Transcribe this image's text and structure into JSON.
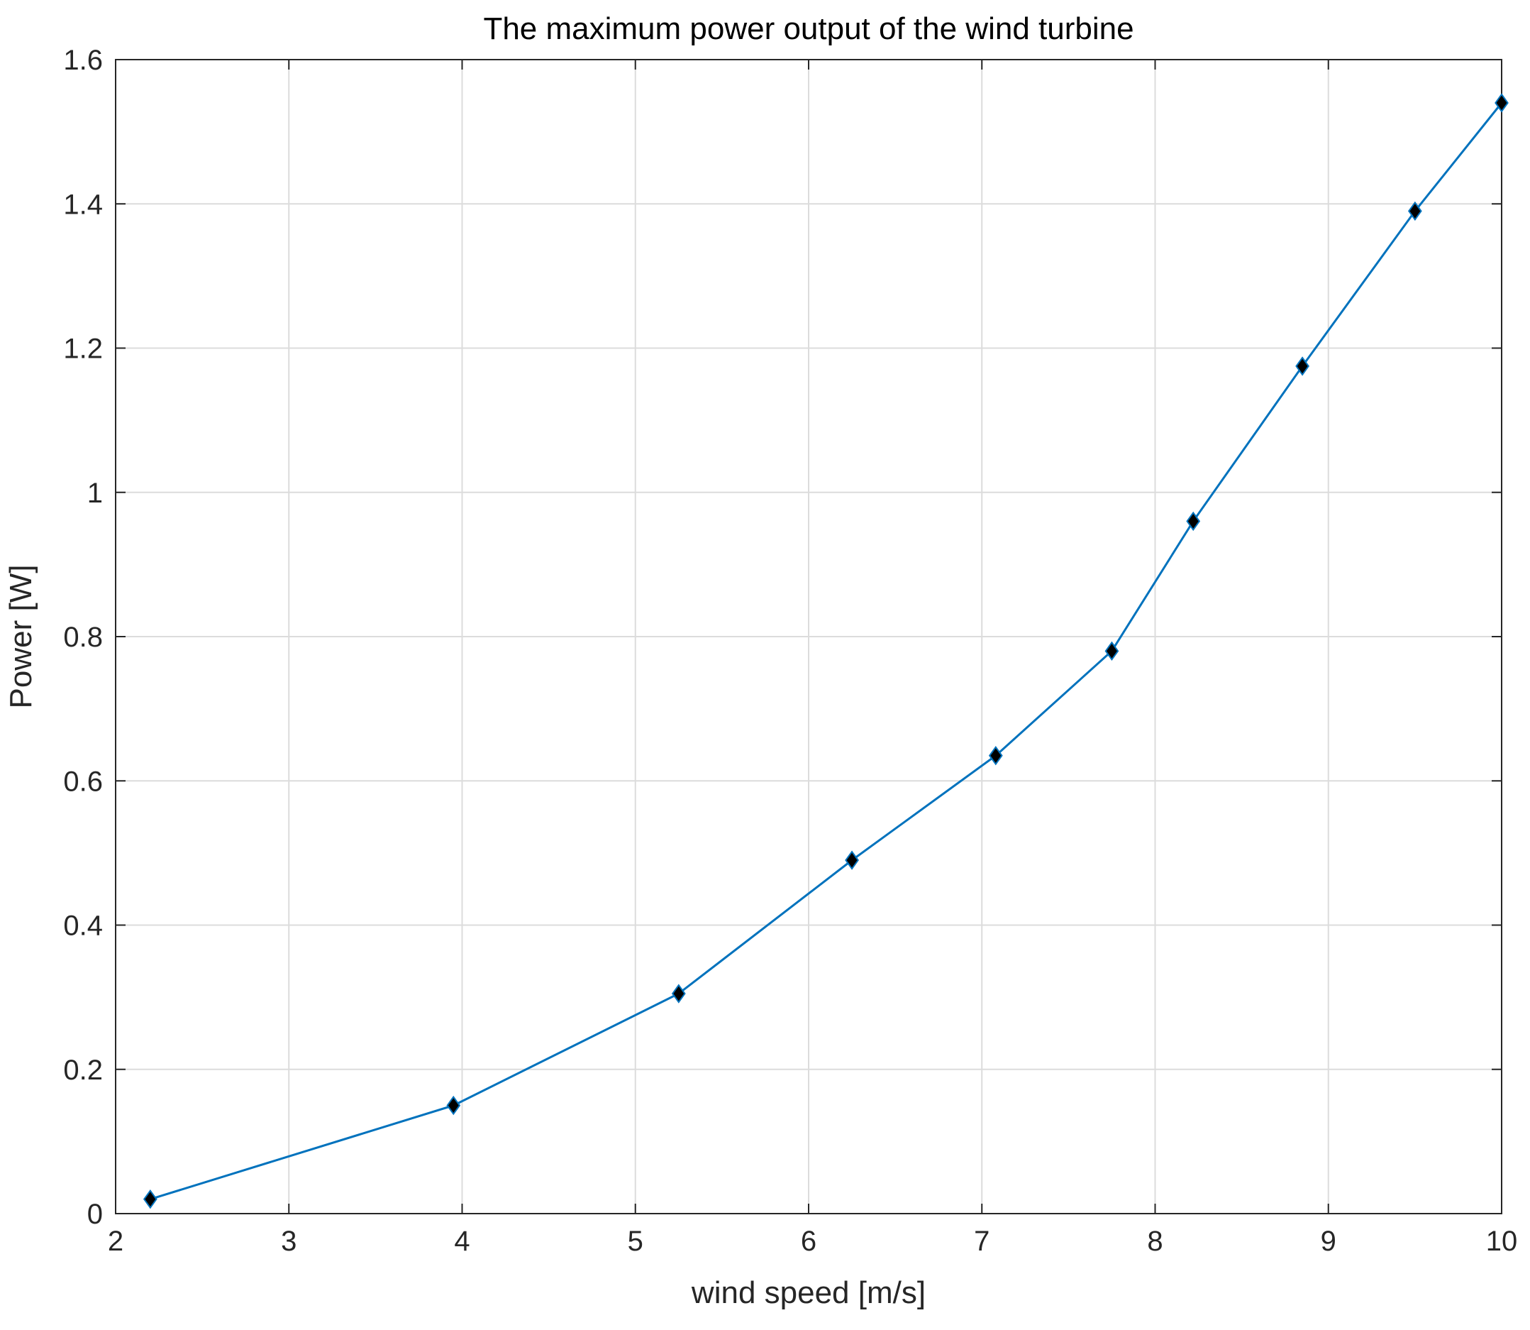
{
  "chart_data": {
    "type": "line",
    "title": "The maximum power output of the wind turbine",
    "xlabel": "wind speed [m/s]",
    "ylabel": "Power [W]",
    "xlim": [
      2,
      10
    ],
    "ylim": [
      0,
      1.6
    ],
    "xticks": [
      2,
      3,
      4,
      5,
      6,
      7,
      8,
      9,
      10
    ],
    "xtick_labels": [
      "2",
      "3",
      "4",
      "5",
      "6",
      "7",
      "8",
      "9",
      "10"
    ],
    "yticks": [
      0,
      0.2,
      0.4,
      0.6,
      0.8,
      1.0,
      1.2,
      1.4,
      1.6
    ],
    "ytick_labels": [
      "0",
      "0.2",
      "0.4",
      "0.6",
      "0.8",
      "1",
      "1.2",
      "1.4",
      "1.6"
    ],
    "grid": true,
    "legend": "none",
    "series": [
      {
        "x": [
          2.2,
          3.95,
          5.25,
          6.25,
          7.08,
          7.75,
          8.22,
          8.85,
          9.5,
          10.0
        ],
        "y": [
          0.02,
          0.15,
          0.305,
          0.49,
          0.635,
          0.78,
          0.96,
          1.175,
          1.39,
          1.54
        ],
        "color": "#0072BD",
        "marker": "diamond",
        "marker_color": "#000000"
      }
    ]
  }
}
